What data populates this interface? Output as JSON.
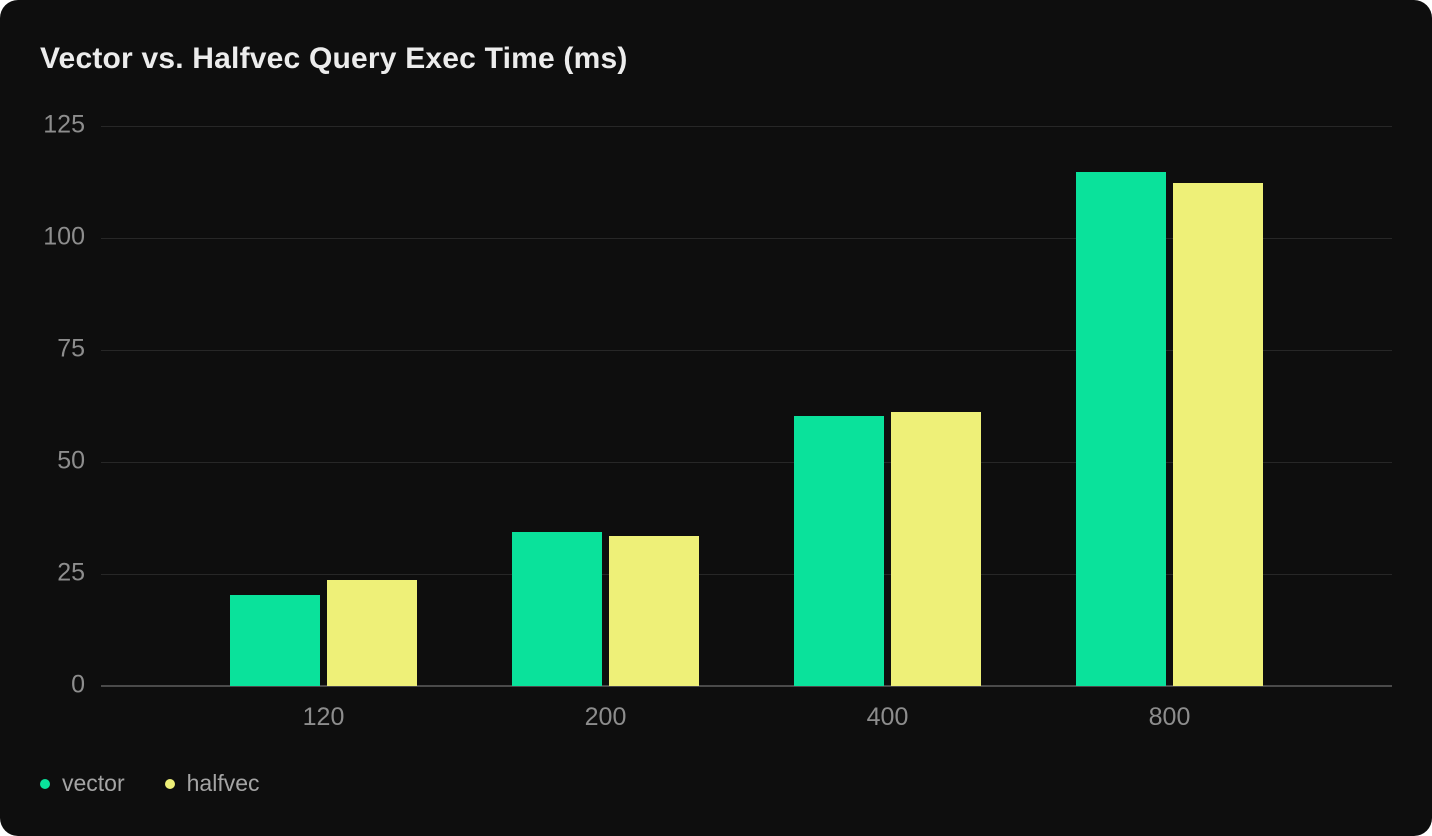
{
  "card": {
    "background": "#0e0e0e",
    "page_background": "#ffffff"
  },
  "chart_data": {
    "type": "bar",
    "title": "Vector vs. Halfvec Query Exec Time (ms)",
    "xlabel": "",
    "ylabel": "",
    "categories": [
      "120",
      "200",
      "400",
      "800"
    ],
    "series": [
      {
        "name": "vector",
        "color": "#0ae29b",
        "values": [
          20.4,
          34.4,
          60.3,
          114.8
        ]
      },
      {
        "name": "halfvec",
        "color": "#eef078",
        "values": [
          23.7,
          33.5,
          61.2,
          112.2
        ]
      }
    ],
    "ylim": [
      0,
      125
    ],
    "yticks": [
      0,
      25,
      50,
      75,
      100,
      125
    ],
    "grid": true,
    "legend_position": "bottom-left",
    "colors": {
      "grid": "#272727",
      "axis": "#4a4a4a",
      "tick_text": "#8d8d8d",
      "legend_text": "#a4a4a4",
      "title_text": "#ececec"
    }
  }
}
